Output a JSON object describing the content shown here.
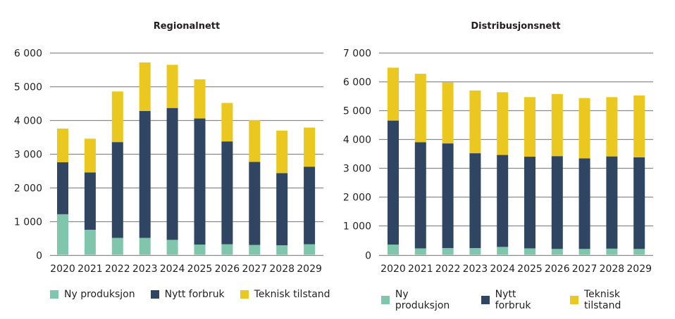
{
  "colors": {
    "ny_produksjon": "#7fc6ad",
    "nytt_forbruk": "#2f4561",
    "teknisk_tilstand": "#ebc81f",
    "grid": "#8a8a8a"
  },
  "chart_data": [
    {
      "type": "bar",
      "stacked": true,
      "title": "Regionalnett",
      "xlabel": "",
      "ylabel": "",
      "categories": [
        "2020",
        "2021",
        "2022",
        "2023",
        "2024",
        "2025",
        "2026",
        "2027",
        "2028",
        "2029"
      ],
      "ylim": [
        0,
        6000
      ],
      "yticks": [
        0,
        1000,
        2000,
        3000,
        4000,
        5000,
        6000
      ],
      "ytick_labels": [
        "0",
        "1 000",
        "2 000",
        "3 000",
        "4 000",
        "5 000",
        "6 000"
      ],
      "grid": true,
      "legend_position": "bottom",
      "series": [
        {
          "name": "Ny produksjon",
          "color_key": "ny_produksjon",
          "values": [
            1200,
            740,
            500,
            500,
            440,
            300,
            310,
            290,
            280,
            310
          ]
        },
        {
          "name": "Nytt forbruk",
          "color_key": "nytt_forbruk",
          "values": [
            1540,
            1700,
            2840,
            3760,
            3910,
            3740,
            3050,
            2460,
            2140,
            2300
          ]
        },
        {
          "name": "Teknisk tilstand",
          "color_key": "teknisk_tilstand",
          "values": [
            1000,
            1000,
            1500,
            1440,
            1280,
            1160,
            1140,
            1240,
            1260,
            1160
          ]
        }
      ]
    },
    {
      "type": "bar",
      "stacked": true,
      "title": "Distribusjonsnett",
      "xlabel": "",
      "ylabel": "",
      "categories": [
        "2020",
        "2021",
        "2022",
        "2023",
        "2024",
        "2025",
        "2026",
        "2027",
        "2028",
        "2029"
      ],
      "ylim": [
        0,
        7000
      ],
      "yticks": [
        0,
        1000,
        2000,
        3000,
        4000,
        5000,
        6000,
        7000
      ],
      "ytick_labels": [
        "0",
        "1 000",
        "2 000",
        "3 000",
        "4 000",
        "5 000",
        "6 000",
        "7 000"
      ],
      "grid": true,
      "legend_position": "bottom",
      "series": [
        {
          "name": "Ny produksjon",
          "color_key": "ny_produksjon",
          "values": [
            350,
            220,
            230,
            230,
            270,
            220,
            200,
            200,
            210,
            200
          ]
        },
        {
          "name": "Nytt forbruk",
          "color_key": "nytt_forbruk",
          "values": [
            4290,
            3670,
            3620,
            3280,
            3180,
            3170,
            3210,
            3130,
            3190,
            3170
          ]
        },
        {
          "name": "Teknisk tilstand",
          "color_key": "teknisk_tilstand",
          "values": [
            1830,
            2370,
            2110,
            2170,
            2170,
            2060,
            2150,
            2090,
            2050,
            2140
          ]
        }
      ]
    }
  ]
}
